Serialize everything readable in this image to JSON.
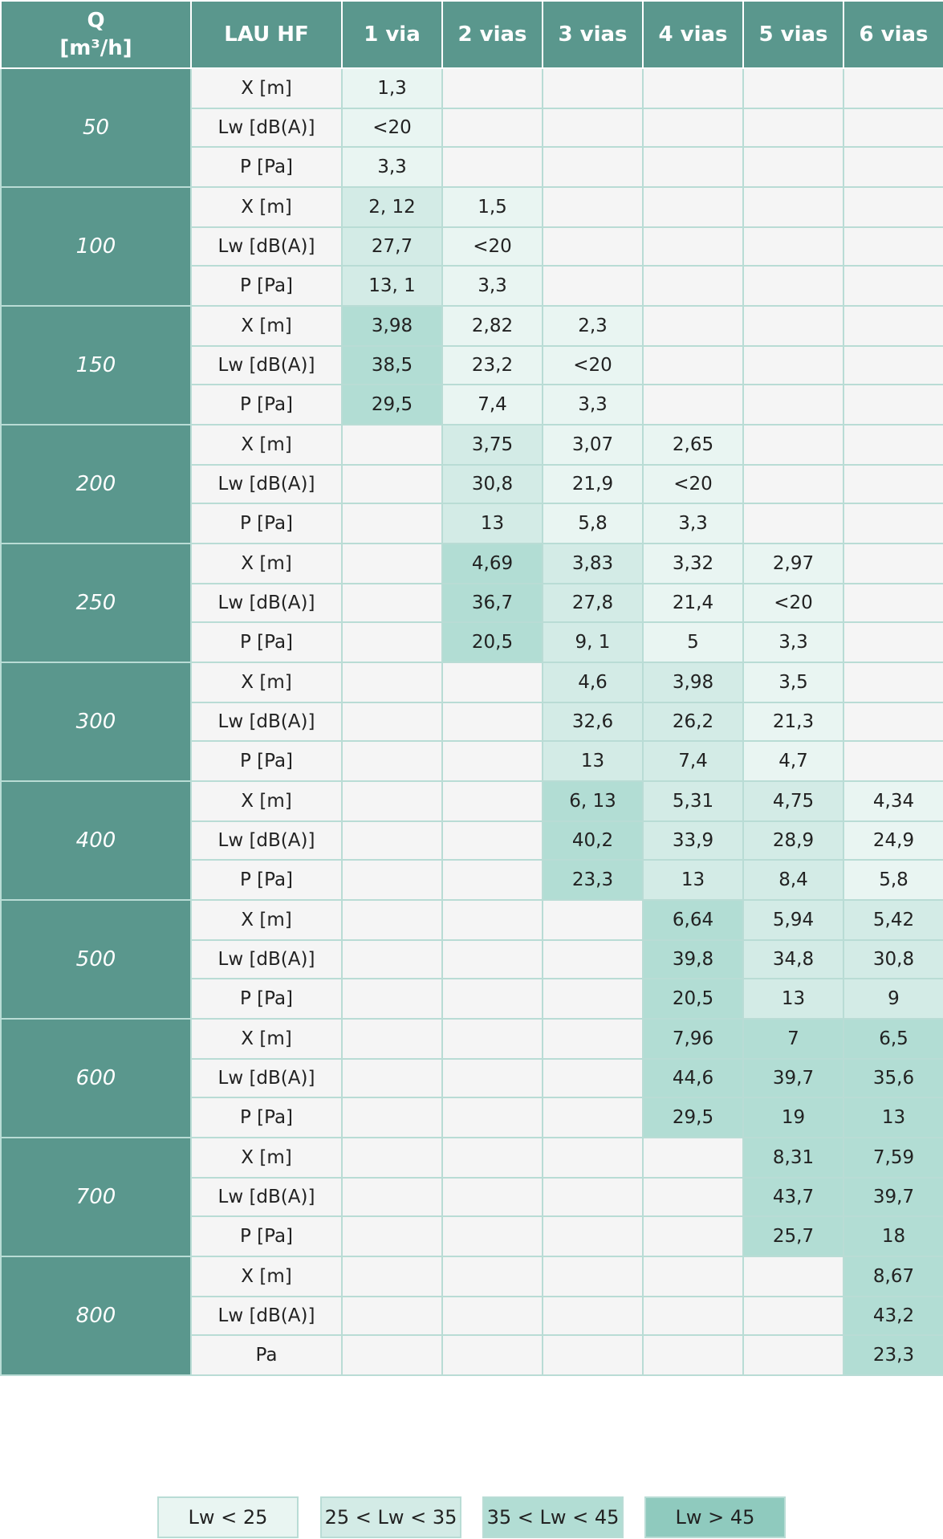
{
  "header": {
    "q_label": "Q",
    "q_unit": "[m³/h]",
    "lau": "LAU HF",
    "ways": [
      "1 via",
      "2 vias",
      "3 vias",
      "4 vias",
      "5 vias",
      "6 vias"
    ]
  },
  "colors": {
    "header_bg": "#5a978d",
    "border": "#b9dcd5",
    "empty_bg": "#f5f5f5",
    "lw_lt_25": "#e9f5f2",
    "lw_25_35": "#d3ebe6",
    "lw_35_45": "#b2ddd4",
    "lw_gt_45": "#8fcabe"
  },
  "rows": [
    {
      "q": "50",
      "params": [
        "X [m]",
        "Lw [dB(A)]",
        "P [Pa]"
      ],
      "cells": [
        {
          "values": [
            "1,3",
            "<20",
            "3,3"
          ],
          "level": 1
        },
        {
          "values": [
            "",
            "",
            ""
          ],
          "level": 0
        },
        {
          "values": [
            "",
            "",
            ""
          ],
          "level": 0
        },
        {
          "values": [
            "",
            "",
            ""
          ],
          "level": 0
        },
        {
          "values": [
            "",
            "",
            ""
          ],
          "level": 0
        },
        {
          "values": [
            "",
            "",
            ""
          ],
          "level": 0
        }
      ]
    },
    {
      "q": "100",
      "params": [
        "X [m]",
        "Lw [dB(A)]",
        "P [Pa]"
      ],
      "cells": [
        {
          "values": [
            "2, 12",
            "27,7",
            "13, 1"
          ],
          "level": 2
        },
        {
          "values": [
            "1,5",
            "<20",
            "3,3"
          ],
          "level": 1
        },
        {
          "values": [
            "",
            "",
            ""
          ],
          "level": 0
        },
        {
          "values": [
            "",
            "",
            ""
          ],
          "level": 0
        },
        {
          "values": [
            "",
            "",
            ""
          ],
          "level": 0
        },
        {
          "values": [
            "",
            "",
            ""
          ],
          "level": 0
        }
      ]
    },
    {
      "q": "150",
      "params": [
        "X [m]",
        "Lw [dB(A)]",
        "P [Pa]"
      ],
      "cells": [
        {
          "values": [
            "3,98",
            "38,5",
            "29,5"
          ],
          "level": 3
        },
        {
          "values": [
            "2,82",
            "23,2",
            "7,4"
          ],
          "level": 1
        },
        {
          "values": [
            "2,3",
            "<20",
            "3,3"
          ],
          "level": 1
        },
        {
          "values": [
            "",
            "",
            ""
          ],
          "level": 0
        },
        {
          "values": [
            "",
            "",
            ""
          ],
          "level": 0
        },
        {
          "values": [
            "",
            "",
            ""
          ],
          "level": 0
        }
      ]
    },
    {
      "q": "200",
      "params": [
        "X [m]",
        "Lw [dB(A)]",
        "P [Pa]"
      ],
      "cells": [
        {
          "values": [
            "",
            "",
            ""
          ],
          "level": 0
        },
        {
          "values": [
            "3,75",
            "30,8",
            "13"
          ],
          "level": 2
        },
        {
          "values": [
            "3,07",
            "21,9",
            "5,8"
          ],
          "level": 1
        },
        {
          "values": [
            "2,65",
            "<20",
            "3,3"
          ],
          "level": 1
        },
        {
          "values": [
            "",
            "",
            ""
          ],
          "level": 0
        },
        {
          "values": [
            "",
            "",
            ""
          ],
          "level": 0
        }
      ]
    },
    {
      "q": "250",
      "params": [
        "X [m]",
        "Lw [dB(A)]",
        "P [Pa]"
      ],
      "cells": [
        {
          "values": [
            "",
            "",
            ""
          ],
          "level": 0
        },
        {
          "values": [
            "4,69",
            "36,7",
            "20,5"
          ],
          "level": 3
        },
        {
          "values": [
            "3,83",
            "27,8",
            "9, 1"
          ],
          "level": 2
        },
        {
          "values": [
            "3,32",
            "21,4",
            "5"
          ],
          "level": 1
        },
        {
          "values": [
            "2,97",
            "<20",
            "3,3"
          ],
          "level": 1
        },
        {
          "values": [
            "",
            "",
            ""
          ],
          "level": 0
        }
      ]
    },
    {
      "q": "300",
      "params": [
        "X [m]",
        "Lw [dB(A)]",
        "P [Pa]"
      ],
      "cells": [
        {
          "values": [
            "",
            "",
            ""
          ],
          "level": 0
        },
        {
          "values": [
            "",
            "",
            ""
          ],
          "level": 0
        },
        {
          "values": [
            "4,6",
            "32,6",
            "13"
          ],
          "level": 2
        },
        {
          "values": [
            "3,98",
            "26,2",
            "7,4"
          ],
          "level": 2
        },
        {
          "values": [
            "3,5",
            "21,3",
            "4,7"
          ],
          "level": 1
        },
        {
          "values": [
            "",
            "",
            ""
          ],
          "level": 0
        }
      ]
    },
    {
      "q": "400",
      "params": [
        "X [m]",
        "Lw [dB(A)]",
        "P [Pa]"
      ],
      "cells": [
        {
          "values": [
            "",
            "",
            ""
          ],
          "level": 0
        },
        {
          "values": [
            "",
            "",
            ""
          ],
          "level": 0
        },
        {
          "values": [
            "6, 13",
            "40,2",
            "23,3"
          ],
          "level": 3
        },
        {
          "values": [
            "5,31",
            "33,9",
            "13"
          ],
          "level": 2
        },
        {
          "values": [
            "4,75",
            "28,9",
            "8,4"
          ],
          "level": 2
        },
        {
          "values": [
            "4,34",
            "24,9",
            "5,8"
          ],
          "level": 1
        }
      ]
    },
    {
      "q": "500",
      "params": [
        "X [m]",
        "Lw [dB(A)]",
        "P [Pa]"
      ],
      "cells": [
        {
          "values": [
            "",
            "",
            ""
          ],
          "level": 0
        },
        {
          "values": [
            "",
            "",
            ""
          ],
          "level": 0
        },
        {
          "values": [
            "",
            "",
            ""
          ],
          "level": 0
        },
        {
          "values": [
            "6,64",
            "39,8",
            "20,5"
          ],
          "level": 3
        },
        {
          "values": [
            "5,94",
            "34,8",
            "13"
          ],
          "level": 2
        },
        {
          "values": [
            "5,42",
            "30,8",
            "9"
          ],
          "level": 2
        }
      ]
    },
    {
      "q": "600",
      "params": [
        "X [m]",
        "Lw [dB(A)]",
        "P [Pa]"
      ],
      "cells": [
        {
          "values": [
            "",
            "",
            ""
          ],
          "level": 0
        },
        {
          "values": [
            "",
            "",
            ""
          ],
          "level": 0
        },
        {
          "values": [
            "",
            "",
            ""
          ],
          "level": 0
        },
        {
          "values": [
            "7,96",
            "44,6",
            "29,5"
          ],
          "level": 3
        },
        {
          "values": [
            "7",
            "39,7",
            "19"
          ],
          "level": 3
        },
        {
          "values": [
            "6,5",
            "35,6",
            "13"
          ],
          "level": 3
        }
      ]
    },
    {
      "q": "700",
      "params": [
        "X [m]",
        "Lw [dB(A)]",
        "P [Pa]"
      ],
      "cells": [
        {
          "values": [
            "",
            "",
            ""
          ],
          "level": 0
        },
        {
          "values": [
            "",
            "",
            ""
          ],
          "level": 0
        },
        {
          "values": [
            "",
            "",
            ""
          ],
          "level": 0
        },
        {
          "values": [
            "",
            "",
            ""
          ],
          "level": 0
        },
        {
          "values": [
            "8,31",
            "43,7",
            "25,7"
          ],
          "level": 3
        },
        {
          "values": [
            "7,59",
            "39,7",
            "18"
          ],
          "level": 3
        }
      ]
    },
    {
      "q": "800",
      "params": [
        "X [m]",
        "Lw [dB(A)]",
        "Pa"
      ],
      "cells": [
        {
          "values": [
            "",
            "",
            ""
          ],
          "level": 0
        },
        {
          "values": [
            "",
            "",
            ""
          ],
          "level": 0
        },
        {
          "values": [
            "",
            "",
            ""
          ],
          "level": 0
        },
        {
          "values": [
            "",
            "",
            ""
          ],
          "level": 0
        },
        {
          "values": [
            "",
            "",
            ""
          ],
          "level": 0
        },
        {
          "values": [
            "8,67",
            "43,2",
            "23,3"
          ],
          "level": 3
        }
      ]
    }
  ],
  "legend": [
    {
      "label": "Lw < 25",
      "level": 1
    },
    {
      "label": "25 < Lw < 35",
      "level": 2
    },
    {
      "label": "35 < Lw < 45",
      "level": 3
    },
    {
      "label": "Lw > 45",
      "level": 4
    }
  ]
}
